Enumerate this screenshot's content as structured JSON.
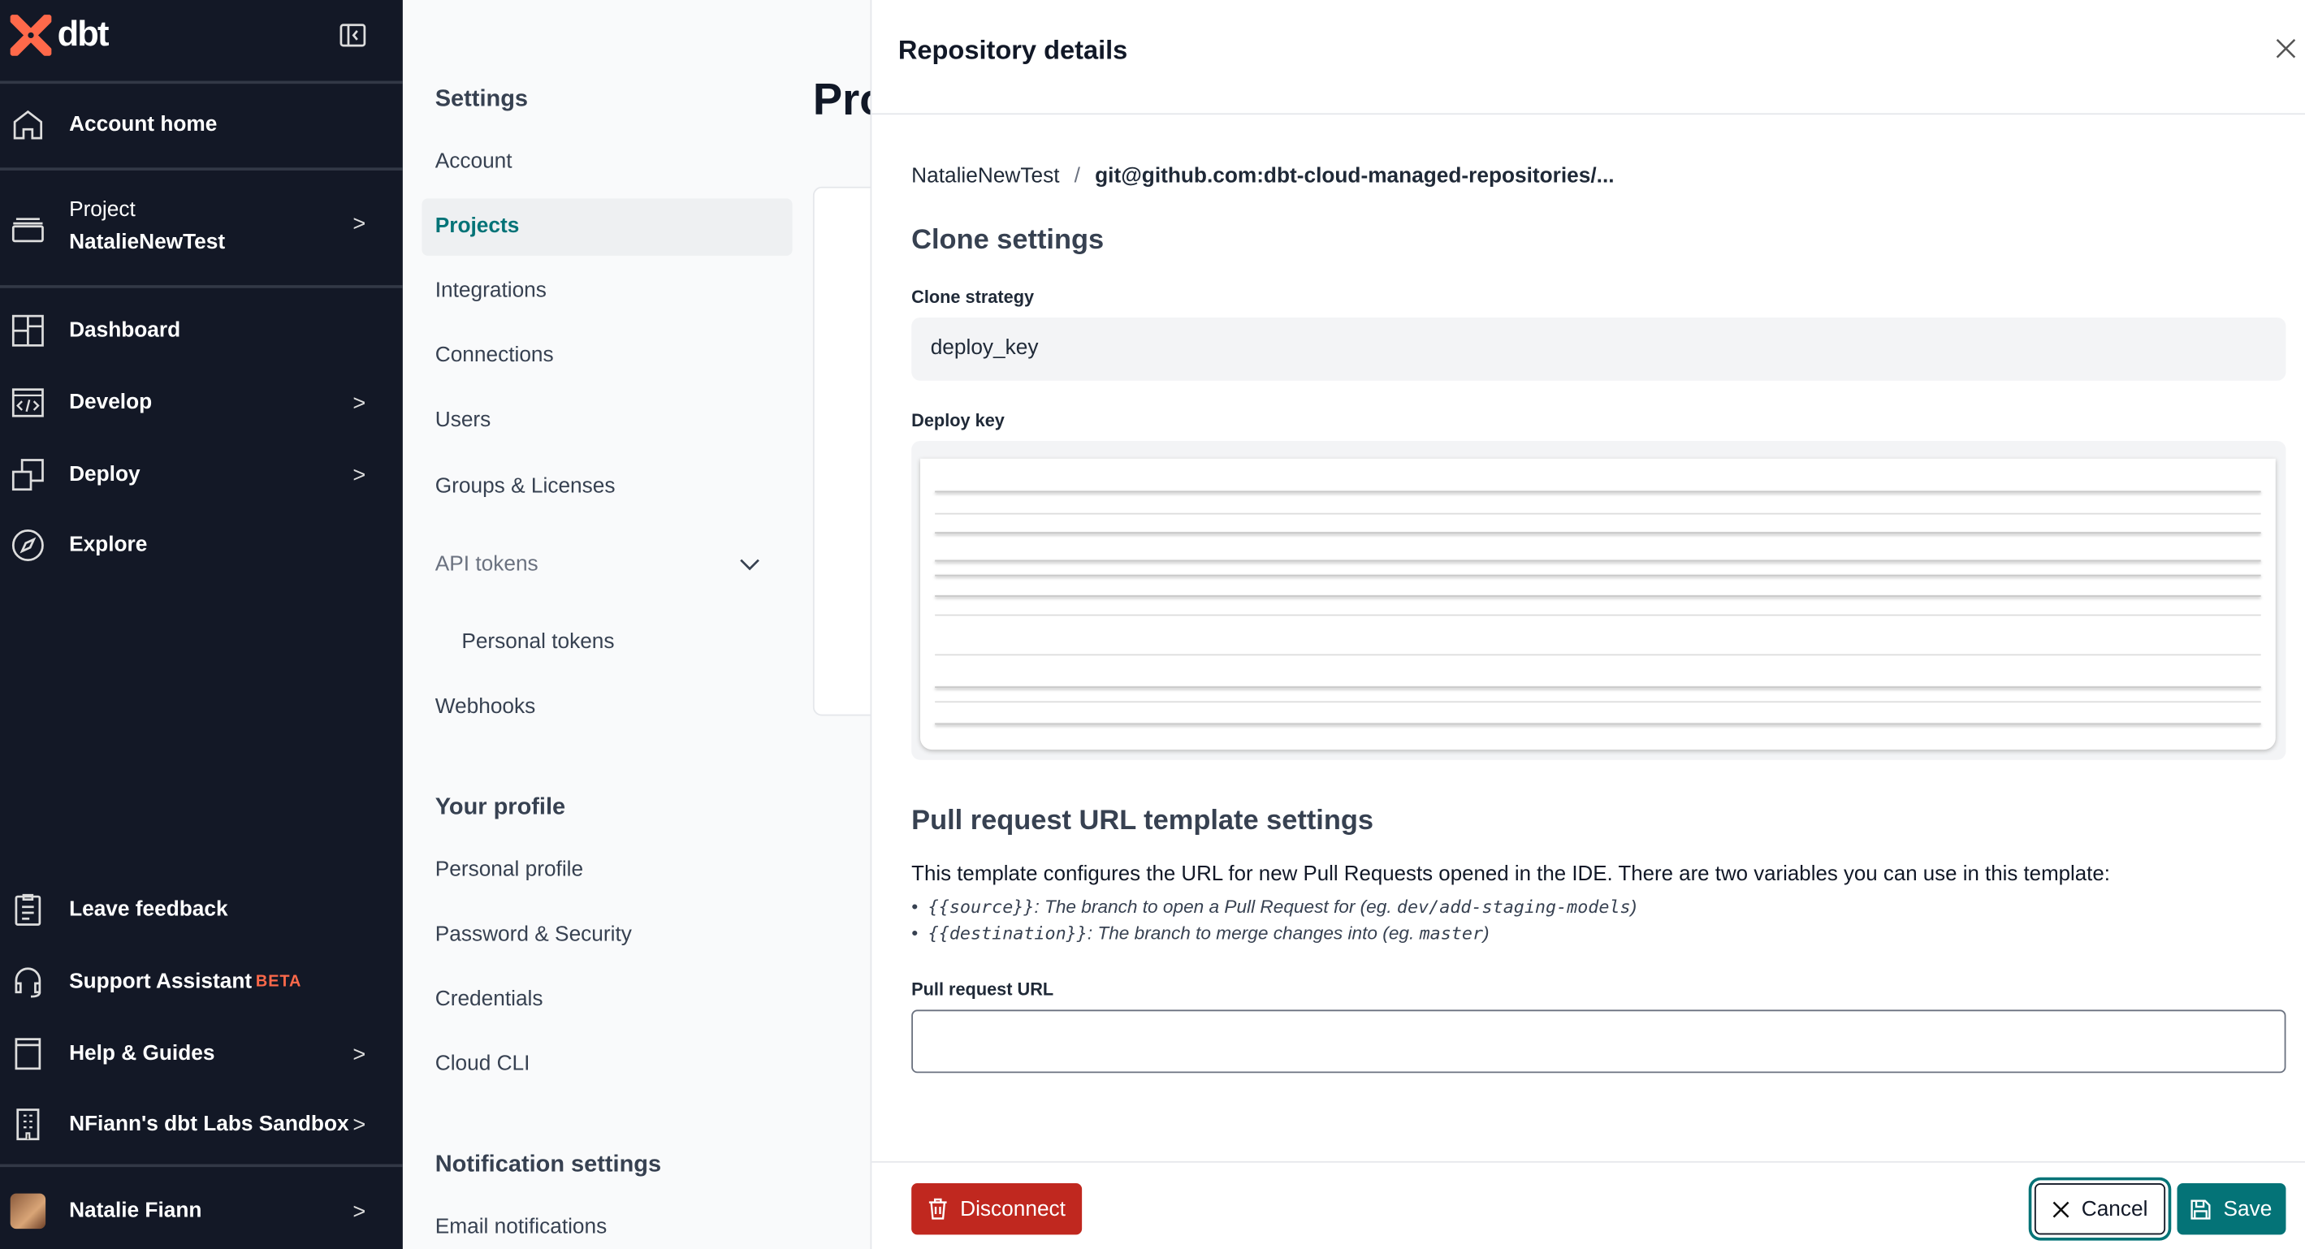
{
  "sidebar": {
    "brand": "dbt",
    "items": [
      {
        "label": "Account home",
        "icon": "home-icon"
      },
      {
        "label_top": "Project",
        "label": "NatalieNewTest",
        "icon": "project-icon"
      },
      {
        "label": "Dashboard",
        "icon": "dashboard-icon"
      },
      {
        "label": "Develop",
        "icon": "code-icon"
      },
      {
        "label": "Deploy",
        "icon": "deploy-icon"
      },
      {
        "label": "Explore",
        "icon": "compass-icon"
      }
    ],
    "bottom": [
      {
        "label": "Leave feedback",
        "icon": "clipboard-icon"
      },
      {
        "label": "Support Assistant",
        "badge": "BETA",
        "icon": "headset-icon"
      },
      {
        "label": "Help & Guides",
        "icon": "book-icon"
      },
      {
        "label": "NFiann's dbt Labs Sandbox",
        "icon": "building-icon"
      },
      {
        "label": "Natalie Fiann",
        "icon": "avatar"
      }
    ],
    "colors": {
      "bg": "#131826",
      "logo": "#ff694a",
      "beta": "#ff694a"
    }
  },
  "settings_nav": {
    "title": "Settings",
    "items": [
      "Account",
      "Projects",
      "Integrations",
      "Connections",
      "Users",
      "Groups & Licenses",
      "API tokens",
      "Personal tokens",
      "Webhooks"
    ],
    "active": "Projects",
    "profile_title": "Your profile",
    "profile_items": [
      "Personal profile",
      "Password & Security",
      "Credentials",
      "Cloud CLI"
    ],
    "notif_title": "Notification settings",
    "notif_items": [
      "Email notifications"
    ]
  },
  "background_page": {
    "title": "Pro"
  },
  "drawer": {
    "title": "Repository details",
    "breadcrumb": {
      "project": "NatalieNewTest",
      "sep": "/",
      "repo": "git@github.com:dbt-cloud-managed-repositories/..."
    },
    "clone_heading": "Clone settings",
    "clone_strategy_label": "Clone strategy",
    "clone_strategy_value": "deploy_key",
    "deploy_key_label": "Deploy key",
    "pr_heading": "Pull request URL template settings",
    "pr_desc": "This template configures the URL for new Pull Requests opened in the IDE. There are two variables you can use in this template:",
    "bullets": [
      {
        "code": "{{source}}",
        "text": ": The branch to open a Pull Request for (eg. ",
        "example": "dev/add-staging-models",
        "close": ")"
      },
      {
        "code": "{{destination}}",
        "text": ": The branch to merge changes into (eg. ",
        "example": "master",
        "close": ")"
      }
    ],
    "pr_url_label": "Pull request URL",
    "pr_url_value": "",
    "disconnect": "Disconnect",
    "cancel": "Cancel",
    "save": "Save",
    "colors": {
      "danger": "#c0281f",
      "primary": "#047377"
    }
  }
}
